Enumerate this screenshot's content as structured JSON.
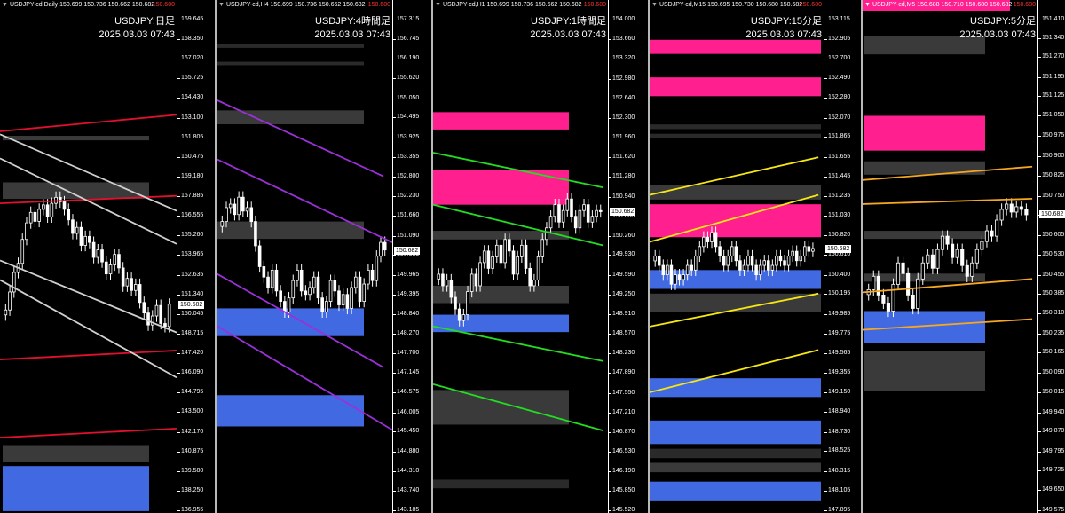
{
  "colors": {
    "bg": "#000000",
    "zone_gray": "#3a3a3a",
    "zone_gray_dark": "#2a2a2a",
    "zone_pink": "#ff1f8f",
    "zone_blue": "#4169e1",
    "line_red": "#e0102f",
    "line_white": "#d0d0d0",
    "line_purple": "#9b30d9",
    "line_green": "#22dd22",
    "line_yellow": "#f5e614",
    "line_orange": "#f5a623",
    "candle": "#ffffff"
  },
  "chart_data": [
    {
      "type": "candlestick",
      "symbol_header": "USDJPY-cd,Daily  150.699 150.736 150.662 150.682",
      "header_price": "150.680",
      "title": "USDJPY:日足",
      "timestamp": "2025.03.03 07:43",
      "current_price": "150.682",
      "y_ticks": [
        "169.645",
        "168.350",
        "167.020",
        "165.725",
        "164.430",
        "163.100",
        "161.805",
        "160.475",
        "159.180",
        "157.885",
        "156.555",
        "155.260",
        "153.965",
        "152.635",
        "151.340",
        "150.045",
        "148.715",
        "147.420",
        "146.090",
        "144.795",
        "143.500",
        "142.170",
        "140.875",
        "139.580",
        "138.250",
        "136.955"
      ],
      "ylim": [
        136.955,
        169.645
      ],
      "zones": [
        {
          "color": "gray",
          "from": 161.6,
          "to": 161.9
        },
        {
          "color": "gray",
          "from": 157.7,
          "to": 158.8
        },
        {
          "color": "gray",
          "from": 140.2,
          "to": 141.3
        },
        {
          "color": "blue",
          "from": 136.9,
          "to": 139.9
        }
      ],
      "lines": [
        {
          "color": "red",
          "start": [
            0,
            162.2
          ],
          "end": [
            1,
            163.3
          ]
        },
        {
          "color": "red",
          "start": [
            0,
            157.4
          ],
          "end": [
            1,
            157.9
          ]
        },
        {
          "color": "red",
          "start": [
            0,
            147.0
          ],
          "end": [
            1,
            147.6
          ]
        },
        {
          "color": "red",
          "start": [
            0,
            141.8
          ],
          "end": [
            1,
            142.4
          ]
        },
        {
          "color": "white",
          "start": [
            0,
            162.0
          ],
          "end": [
            1,
            156.9
          ]
        },
        {
          "color": "white",
          "start": [
            0,
            160.4
          ],
          "end": [
            1,
            154.7
          ]
        },
        {
          "color": "white",
          "start": [
            0,
            153.6
          ],
          "end": [
            1,
            148.8
          ]
        },
        {
          "color": "white",
          "start": [
            0,
            152.3
          ],
          "end": [
            1,
            145.8
          ]
        }
      ],
      "candles": {
        "x_range": [
          0.02,
          0.97
        ],
        "closes": [
          150.3,
          151.5,
          152.8,
          153.4,
          155.0,
          156.1,
          156.8,
          156.2,
          157.0,
          157.3,
          156.5,
          157.4,
          157.8,
          157.5,
          157.0,
          156.3,
          155.4,
          155.8,
          154.6,
          155.2,
          154.8,
          153.8,
          154.3,
          153.5,
          152.7,
          153.3,
          154.0,
          153.1,
          151.9,
          152.4,
          151.6,
          152.0,
          150.8,
          150.1,
          149.3,
          149.9,
          150.6,
          149.4,
          149.2,
          150.68
        ]
      }
    },
    {
      "type": "candlestick",
      "symbol_header": "USDJPY-cd,H4  150.699 150.736 150.662 150.682",
      "header_price": "150.680",
      "title": "USDJPY:4時間足",
      "timestamp": "2025.03.03 07:43",
      "current_price": "150.682",
      "y_ticks": [
        "157.315",
        "156.745",
        "156.190",
        "155.620",
        "155.050",
        "154.495",
        "153.925",
        "153.355",
        "152.800",
        "152.230",
        "151.660",
        "151.090",
        "150.535",
        "149.965",
        "149.395",
        "148.840",
        "148.270",
        "147.700",
        "147.145",
        "146.575",
        "146.005",
        "145.450",
        "144.880",
        "144.310",
        "143.740",
        "143.185"
      ],
      "ylim": [
        143.185,
        157.315
      ],
      "zones": [
        {
          "color": "gray_dark",
          "from": 156.5,
          "to": 156.6
        },
        {
          "color": "gray_dark",
          "from": 156.0,
          "to": 156.1
        },
        {
          "color": "gray",
          "from": 154.3,
          "to": 154.7
        },
        {
          "color": "gray",
          "from": 151.0,
          "to": 151.5
        },
        {
          "color": "blue",
          "from": 148.2,
          "to": 149.0
        },
        {
          "color": "blue",
          "from": 145.6,
          "to": 146.5
        }
      ],
      "lines": [
        {
          "color": "purple",
          "start": [
            0,
            155.0
          ],
          "end": [
            0.95,
            152.8
          ]
        },
        {
          "color": "purple",
          "start": [
            0,
            153.3
          ],
          "end": [
            1,
            150.9
          ]
        },
        {
          "color": "purple",
          "start": [
            0,
            150.0
          ],
          "end": [
            0.95,
            147.3
          ]
        },
        {
          "color": "purple",
          "start": [
            0,
            148.5
          ],
          "end": [
            1,
            145.5
          ]
        }
      ],
      "candles": {
        "x_range": [
          0.02,
          0.97
        ],
        "closes": [
          151.5,
          151.9,
          152.0,
          151.7,
          152.2,
          151.8,
          151.9,
          151.5,
          150.8,
          150.2,
          149.9,
          149.6,
          150.1,
          149.5,
          149.2,
          148.9,
          149.3,
          149.8,
          150.1,
          149.5,
          149.4,
          149.6,
          149.9,
          149.3,
          148.9,
          149.2,
          149.8,
          149.5,
          149.1,
          149.4,
          149.0,
          149.6,
          149.9,
          149.2,
          149.7,
          150.1,
          149.8,
          150.5,
          150.9,
          150.68
        ]
      }
    },
    {
      "type": "candlestick",
      "symbol_header": "USDJPY-cd,H1  150.699 150.736 150.662 150.682",
      "header_price": "150.680",
      "title": "USDJPY:1時間足",
      "timestamp": "2025.03.03 07:43",
      "current_price": "150.682",
      "y_ticks": [
        "154.000",
        "153.660",
        "153.320",
        "152.980",
        "152.640",
        "152.300",
        "151.960",
        "151.620",
        "151.280",
        "150.940",
        "150.600",
        "150.260",
        "149.930",
        "149.590",
        "149.250",
        "148.910",
        "148.570",
        "148.230",
        "147.890",
        "147.550",
        "147.210",
        "146.870",
        "146.530",
        "146.190",
        "145.850",
        "145.520"
      ],
      "ylim": [
        145.52,
        154.0
      ],
      "zones": [
        {
          "color": "pink",
          "from": 152.1,
          "to": 152.4
        },
        {
          "color": "pink",
          "from": 150.8,
          "to": 151.4
        },
        {
          "color": "gray",
          "from": 150.2,
          "to": 150.35
        },
        {
          "color": "gray",
          "from": 149.1,
          "to": 149.4
        },
        {
          "color": "blue",
          "from": 148.6,
          "to": 148.9
        },
        {
          "color": "gray",
          "from": 147.0,
          "to": 147.6
        },
        {
          "color": "gray_dark",
          "from": 145.9,
          "to": 146.05
        }
      ],
      "lines": [
        {
          "color": "green",
          "start": [
            0,
            151.7
          ],
          "end": [
            0.97,
            151.1
          ]
        },
        {
          "color": "green",
          "start": [
            0,
            150.8
          ],
          "end": [
            0.97,
            150.1
          ]
        },
        {
          "color": "green",
          "start": [
            0,
            148.7
          ],
          "end": [
            0.97,
            148.1
          ]
        },
        {
          "color": "green",
          "start": [
            0,
            147.7
          ],
          "end": [
            0.97,
            146.9
          ]
        }
      ],
      "candles": {
        "x_range": [
          0.02,
          0.97
        ],
        "closes": [
          149.6,
          149.4,
          149.5,
          149.2,
          149.0,
          148.8,
          148.9,
          149.3,
          149.6,
          149.4,
          149.8,
          150.0,
          149.7,
          149.9,
          150.1,
          149.8,
          150.2,
          150.0,
          149.6,
          149.9,
          150.1,
          149.7,
          149.4,
          149.5,
          149.9,
          150.2,
          150.4,
          150.6,
          150.8,
          150.5,
          150.7,
          150.9,
          150.6,
          150.4,
          150.7,
          150.8,
          150.5,
          150.6,
          150.7,
          150.68
        ]
      }
    },
    {
      "type": "candlestick",
      "symbol_header": "USDJPY-cd,M15  150.695 150.730 150.680 150.682",
      "header_price": "150.680",
      "title": "USDJPY:15分足",
      "timestamp": "2025.03.03 07:43",
      "current_price": "150.682",
      "y_ticks": [
        "153.115",
        "152.905",
        "152.700",
        "152.490",
        "152.280",
        "152.070",
        "151.865",
        "151.655",
        "151.445",
        "151.235",
        "151.030",
        "150.820",
        "150.610",
        "150.400",
        "150.195",
        "149.985",
        "149.775",
        "149.565",
        "149.355",
        "149.150",
        "148.940",
        "148.730",
        "148.525",
        "148.315",
        "148.105",
        "147.895"
      ],
      "ylim": [
        147.895,
        153.115
      ],
      "zones": [
        {
          "color": "pink",
          "from": 152.75,
          "to": 152.9
        },
        {
          "color": "pink",
          "from": 152.3,
          "to": 152.5
        },
        {
          "color": "gray_dark",
          "from": 151.95,
          "to": 152.0
        },
        {
          "color": "gray_dark",
          "from": 151.85,
          "to": 151.9
        },
        {
          "color": "gray",
          "from": 151.2,
          "to": 151.35
        },
        {
          "color": "pink",
          "from": 150.8,
          "to": 151.15
        },
        {
          "color": "blue",
          "from": 150.25,
          "to": 150.45
        },
        {
          "color": "gray",
          "from": 150.0,
          "to": 150.2
        },
        {
          "color": "blue",
          "from": 149.1,
          "to": 149.3
        },
        {
          "color": "blue",
          "from": 148.6,
          "to": 148.85
        },
        {
          "color": "gray_dark",
          "from": 148.45,
          "to": 148.55
        },
        {
          "color": "gray",
          "from": 148.3,
          "to": 148.4
        },
        {
          "color": "blue",
          "from": 148.0,
          "to": 148.2
        }
      ],
      "lines": [
        {
          "color": "yellow",
          "start": [
            0,
            151.25
          ],
          "end": [
            0.97,
            151.65
          ]
        },
        {
          "color": "yellow",
          "start": [
            0,
            150.75
          ],
          "end": [
            0.97,
            151.25
          ]
        },
        {
          "color": "yellow",
          "start": [
            0,
            149.85
          ],
          "end": [
            0.97,
            150.2
          ]
        },
        {
          "color": "yellow",
          "start": [
            0,
            149.15
          ],
          "end": [
            0.97,
            149.6
          ]
        }
      ],
      "candles": {
        "x_range": [
          0.02,
          0.95
        ],
        "closes": [
          150.6,
          150.5,
          150.4,
          150.5,
          150.3,
          150.4,
          150.35,
          150.4,
          150.5,
          150.45,
          150.6,
          150.7,
          150.8,
          150.75,
          150.85,
          150.7,
          150.6,
          150.5,
          150.6,
          150.7,
          150.55,
          150.45,
          150.5,
          150.6,
          150.5,
          150.4,
          150.5,
          150.55,
          150.45,
          150.5,
          150.6,
          150.55,
          150.5,
          150.6,
          150.65,
          150.55,
          150.6,
          150.7,
          150.65,
          150.68
        ]
      }
    },
    {
      "type": "candlestick",
      "symbol_header": "USDJPY-cd,M5  150.688 150.710 150.680 150.682",
      "header_price": "150.680",
      "title": "USDJPY:5分足",
      "timestamp": "2025.03.03 07:43",
      "current_price": "150.682",
      "y_ticks": [
        "151.410",
        "151.340",
        "151.270",
        "151.195",
        "151.125",
        "151.050",
        "150.975",
        "150.900",
        "150.825",
        "150.750",
        "150.680",
        "150.605",
        "150.530",
        "150.455",
        "150.385",
        "150.310",
        "150.235",
        "150.165",
        "150.090",
        "150.015",
        "149.940",
        "149.870",
        "149.795",
        "149.725",
        "149.650",
        "149.575"
      ],
      "ylim": [
        149.575,
        151.41
      ],
      "zones": [
        {
          "color": "gray",
          "from": 151.28,
          "to": 151.35
        },
        {
          "color": "pink",
          "from": 150.92,
          "to": 151.05
        },
        {
          "color": "gray",
          "from": 150.83,
          "to": 150.88
        },
        {
          "color": "gray",
          "from": 150.59,
          "to": 150.62
        },
        {
          "color": "gray",
          "from": 150.43,
          "to": 150.46
        },
        {
          "color": "blue",
          "from": 150.2,
          "to": 150.32
        },
        {
          "color": "gray",
          "from": 150.02,
          "to": 150.17
        }
      ],
      "lines": [
        {
          "color": "orange",
          "start": [
            0,
            150.81
          ],
          "end": [
            0.97,
            150.86
          ]
        },
        {
          "color": "orange",
          "start": [
            0,
            150.72
          ],
          "end": [
            0.97,
            150.74
          ]
        },
        {
          "color": "orange",
          "start": [
            0,
            150.39
          ],
          "end": [
            0.97,
            150.44
          ]
        },
        {
          "color": "orange",
          "start": [
            0,
            150.25
          ],
          "end": [
            0.97,
            150.29
          ]
        }
      ],
      "candles": {
        "x_range": [
          0.02,
          0.95
        ],
        "closes": [
          150.4,
          150.45,
          150.38,
          150.35,
          150.32,
          150.42,
          150.5,
          150.46,
          150.38,
          150.33,
          150.44,
          150.5,
          150.53,
          150.48,
          150.55,
          150.6,
          150.57,
          150.52,
          150.55,
          150.49,
          150.45,
          150.5,
          150.55,
          150.58,
          150.62,
          150.6,
          150.66,
          150.7,
          150.72,
          150.69,
          150.71,
          150.7,
          150.68
        ]
      }
    }
  ]
}
